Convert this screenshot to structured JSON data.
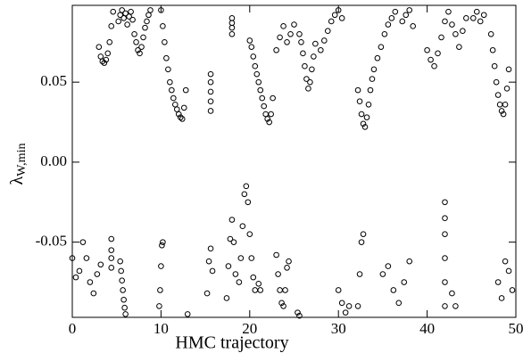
{
  "chart_data": {
    "type": "scatter",
    "xlabel": "HMC trajectory",
    "ylabel": {
      "symbol": "λ",
      "subscript": "W,min"
    },
    "xlim": [
      0,
      50
    ],
    "xticks": [
      0,
      10,
      20,
      30,
      40,
      50
    ],
    "ylim": [
      -0.097,
      0.098
    ],
    "yticks": [
      -0.05,
      {
        "value": 0,
        "label": "0.00"
      },
      0.05
    ],
    "color": "#000000",
    "x": [
      3.0,
      3.2,
      3.4,
      3.6,
      3.8,
      4.0,
      4.2,
      4.4,
      4.6,
      5.2,
      5.4,
      5.6,
      5.8,
      6.0,
      6.2,
      6.4,
      6.6,
      6.8,
      7.0,
      7.2,
      7.4,
      7.6,
      7.8,
      8.0,
      8.2,
      8.4,
      8.6,
      8.8,
      10.0,
      10.2,
      10.4,
      10.6,
      10.8,
      11.0,
      11.2,
      11.4,
      11.6,
      11.8,
      12.0,
      12.2,
      12.4,
      12.6,
      12.8,
      15.6,
      15.6,
      15.6,
      15.6,
      15.6,
      18,
      18,
      18,
      18,
      20.0,
      20.2,
      20.4,
      20.6,
      20.8,
      21.0,
      21.2,
      21.4,
      21.6,
      21.8,
      22.0,
      22.2,
      22.4,
      22.6,
      23.0,
      23.4,
      23.8,
      24.2,
      24.6,
      25.0,
      25.6,
      25.8,
      26.0,
      26.2,
      26.4,
      26.6,
      26.8,
      27.0,
      27.2,
      27.4,
      28.0,
      28.4,
      28.8,
      29.2,
      29.6,
      30.0,
      30.4,
      32.2,
      32.4,
      32.6,
      32.8,
      33.0,
      33.2,
      33.4,
      33.6,
      33.8,
      34.0,
      34.4,
      34.8,
      35.2,
      35.6,
      36.0,
      36.4,
      37.2,
      37.6,
      38.0,
      38.4,
      40.0,
      40.4,
      40.8,
      41.2,
      41.6,
      42.0,
      42.4,
      42.8,
      43.2,
      43.6,
      44.0,
      44.4,
      45.2,
      45.6,
      46.0,
      46.4,
      47.2,
      47.4,
      47.6,
      47.8,
      48.0,
      48.2,
      48.4,
      48.6,
      48.8,
      49.0,
      49.2,
      0,
      0.4,
      0.8,
      1.2,
      1.6,
      2.0,
      2.4,
      2.8,
      3.2,
      4.4,
      4.4,
      4.4,
      4.4,
      5.4,
      5.5,
      5.6,
      5.7,
      5.8,
      5.9,
      6.0,
      9.8,
      9.9,
      10.0,
      10.1,
      10.2,
      13.0,
      15.2,
      15.4,
      15.6,
      15.8,
      17.4,
      17.6,
      17.8,
      18.0,
      18.2,
      18.4,
      18.8,
      19.0,
      19.2,
      19.4,
      19.6,
      19.8,
      20.0,
      20.2,
      20.4,
      20.6,
      21.0,
      21.2,
      23.0,
      23.2,
      23.4,
      23.6,
      23.8,
      24.0,
      24.2,
      24.4,
      25.4,
      25.6,
      30.0,
      30.4,
      30.8,
      31.2,
      32.2,
      32.4,
      32.6,
      32.8,
      35.0,
      35.6,
      36.2,
      36.8,
      37.4,
      38.0,
      42.0,
      42.0,
      42.0,
      42.0,
      42.0,
      42.0,
      42.8,
      43.2,
      48.0,
      48.4,
      48.8,
      49.2,
      49.6
    ],
    "y": [
      0.072,
      0.066,
      0.063,
      0.062,
      0.064,
      0.068,
      0.075,
      0.085,
      0.094,
      0.088,
      0.092,
      0.095,
      0.09,
      0.093,
      0.086,
      0.091,
      0.094,
      0.089,
      0.08,
      0.075,
      0.07,
      0.068,
      0.072,
      0.078,
      0.084,
      0.088,
      0.092,
      0.095,
      0.095,
      0.085,
      0.075,
      0.065,
      0.058,
      0.05,
      0.045,
      0.04,
      0.036,
      0.033,
      0.03,
      0.028,
      0.027,
      0.034,
      0.045,
      0.055,
      0.05,
      0.044,
      0.038,
      0.032,
      0.09,
      0.087,
      0.084,
      0.08,
      0.076,
      0.072,
      0.066,
      0.06,
      0.055,
      0.05,
      0.045,
      0.04,
      0.035,
      0.03,
      0.027,
      0.025,
      0.03,
      0.04,
      0.07,
      0.078,
      0.085,
      0.075,
      0.08,
      0.086,
      0.08,
      0.075,
      0.068,
      0.06,
      0.052,
      0.046,
      0.05,
      0.058,
      0.066,
      0.074,
      0.07,
      0.076,
      0.082,
      0.088,
      0.092,
      0.095,
      0.09,
      0.045,
      0.038,
      0.03,
      0.024,
      0.022,
      0.028,
      0.036,
      0.045,
      0.052,
      0.058,
      0.065,
      0.072,
      0.08,
      0.086,
      0.09,
      0.094,
      0.088,
      0.092,
      0.095,
      0.085,
      0.07,
      0.064,
      0.06,
      0.068,
      0.078,
      0.088,
      0.094,
      0.086,
      0.08,
      0.072,
      0.082,
      0.09,
      0.09,
      0.094,
      0.088,
      0.092,
      0.08,
      0.07,
      0.06,
      0.05,
      0.042,
      0.036,
      0.032,
      0.03,
      0.036,
      0.046,
      0.058,
      -0.06,
      -0.072,
      -0.068,
      -0.05,
      -0.06,
      -0.075,
      -0.082,
      -0.07,
      -0.064,
      -0.048,
      -0.055,
      -0.06,
      -0.066,
      -0.062,
      -0.068,
      -0.074,
      -0.08,
      -0.086,
      -0.091,
      -0.095,
      -0.09,
      -0.08,
      -0.065,
      -0.052,
      -0.05,
      -0.095,
      -0.082,
      -0.062,
      -0.054,
      -0.068,
      -0.085,
      -0.065,
      -0.048,
      -0.036,
      -0.05,
      -0.07,
      -0.075,
      -0.06,
      -0.04,
      -0.02,
      -0.015,
      -0.025,
      -0.045,
      -0.06,
      -0.072,
      -0.08,
      -0.076,
      -0.08,
      -0.058,
      -0.07,
      -0.08,
      -0.088,
      -0.09,
      -0.08,
      -0.066,
      -0.062,
      -0.094,
      -0.096,
      -0.08,
      -0.088,
      -0.094,
      -0.09,
      -0.09,
      -0.07,
      -0.05,
      -0.045,
      -0.07,
      -0.065,
      -0.08,
      -0.088,
      -0.075,
      -0.062,
      -0.025,
      -0.035,
      -0.045,
      -0.06,
      -0.075,
      -0.09,
      -0.082,
      -0.09,
      -0.075,
      -0.085,
      -0.062,
      -0.068,
      -0.08
    ]
  }
}
